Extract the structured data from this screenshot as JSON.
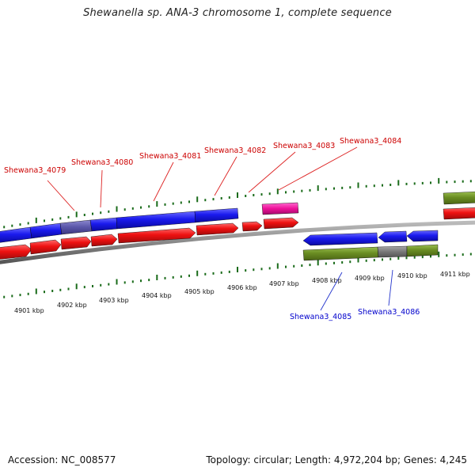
{
  "title": "Shewanella sp. ANA-3 chromosome 1, complete sequence",
  "footer": {
    "accession": "Accession: NC_008577",
    "summary": "Topology: circular; Length: 4,972,204 bp; Genes: 4,245"
  },
  "ruler_labels": [
    "4901 kbp",
    "4902 kbp",
    "4903 kbp",
    "4904 kbp",
    "4905 kbp",
    "4906 kbp",
    "4907 kbp",
    "4908 kbp",
    "4909 kbp",
    "4910 kbp",
    "4911 kbp"
  ],
  "gene_labels": {
    "top": [
      "Shewana3_4079",
      "Shewana3_4080",
      "Shewana3_4081",
      "Shewana3_4082",
      "Shewana3_4083",
      "Shewana3_4084"
    ],
    "bottom": [
      "Shewana3_4085",
      "Shewana3_4086"
    ]
  },
  "colors": {
    "forward_cds": "#1a1aee",
    "forward_gene": "#ee1111",
    "reverse_cds": "#1a1aee",
    "reverse_gene": "#6b8e23",
    "pseudo": "#ee1199",
    "grey_segment": "#777777",
    "label_top": "#cc0000",
    "label_bottom": "#0000cc",
    "tick": "#1a6b1a"
  }
}
